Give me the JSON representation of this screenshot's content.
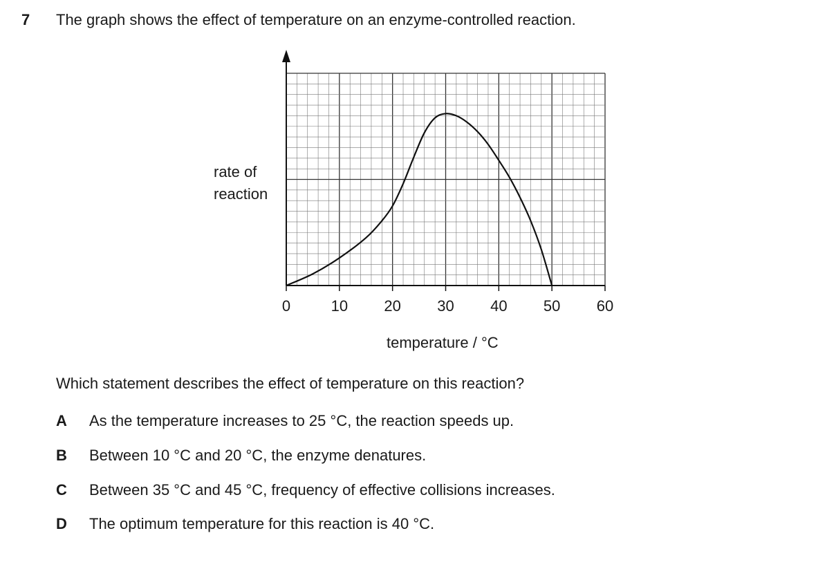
{
  "question": {
    "number": "7",
    "stem": "The graph shows the effect of temperature on an enzyme-controlled reaction.",
    "prompt": "Which statement describes the effect of temperature on this reaction?",
    "options": [
      {
        "letter": "A",
        "text": "As the temperature increases to 25 °C, the reaction speeds up."
      },
      {
        "letter": "B",
        "text": "Between 10 °C and 20 °C, the enzyme denatures."
      },
      {
        "letter": "C",
        "text": "Between 35 °C and 45 °C, frequency of effective collisions increases."
      },
      {
        "letter": "D",
        "text": "The optimum temperature for this reaction is 40 °C."
      }
    ]
  },
  "chart_data": {
    "type": "line",
    "title": "",
    "xlabel": "temperature / °C",
    "ylabel": "rate of reaction",
    "xlim": [
      0,
      60
    ],
    "ylim": [
      0,
      20
    ],
    "x_ticks": [
      "0",
      "10",
      "20",
      "30",
      "40",
      "50",
      "60"
    ],
    "y_ticks_labeled": false,
    "grid": true,
    "series": [
      {
        "x": [
          0,
          5,
          10,
          15,
          18,
          20,
          22,
          24,
          26,
          28,
          30,
          32,
          34,
          36,
          38,
          40,
          42,
          44,
          46,
          48,
          50
        ],
        "y": [
          0,
          1.1,
          2.6,
          4.5,
          6.1,
          7.5,
          9.6,
          12.1,
          14.4,
          15.8,
          16.2,
          16.0,
          15.4,
          14.5,
          13.3,
          11.8,
          10.2,
          8.3,
          6.1,
          3.4,
          0
        ]
      }
    ]
  }
}
